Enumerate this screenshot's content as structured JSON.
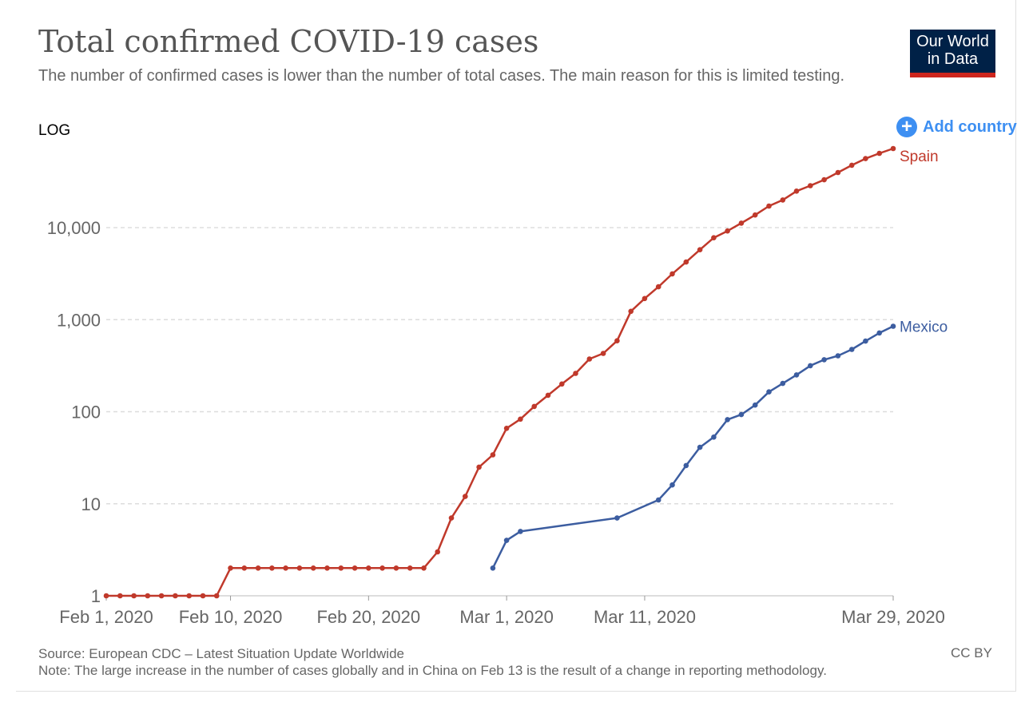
{
  "header": {
    "title": "Total confirmed COVID-19 cases",
    "subtitle": "The number of confirmed cases is lower than the number of total cases. The main reason for this is limited testing.",
    "logo_line1": "Our World",
    "logo_line2": "in Data"
  },
  "controls": {
    "scale_toggle": "LOG",
    "add_country": "Add country"
  },
  "footer": {
    "source": "Source: European CDC – Latest Situation Update Worldwide",
    "note": "Note: The large increase in the number of cases globally and in China on Feb 13 is the result of a change in reporting methodology.",
    "license": "CC BY"
  },
  "colors": {
    "spain": "#c0392b",
    "mexico": "#3c5da0",
    "grid": "#dddddd",
    "logo_bg": "#002147",
    "logo_accent": "#ce261e",
    "add_country": "#3d8ff2"
  },
  "icons": {
    "add": "plus-circle-icon"
  },
  "chart_data": {
    "type": "line",
    "title": "Total confirmed COVID-19 cases",
    "yscale": "log",
    "ylim": [
      1,
      80000
    ],
    "xlim": [
      "2020-02-01",
      "2020-03-29"
    ],
    "grid": "horizontal dashed",
    "y_ticks": [
      {
        "value": 1,
        "label": "1"
      },
      {
        "value": 10,
        "label": "10"
      },
      {
        "value": 100,
        "label": "100"
      },
      {
        "value": 1000,
        "label": "1,000"
      },
      {
        "value": 10000,
        "label": "10,000"
      }
    ],
    "x_ticks": [
      {
        "date": "2020-02-01",
        "label": "Feb 1, 2020"
      },
      {
        "date": "2020-02-10",
        "label": "Feb 10, 2020"
      },
      {
        "date": "2020-02-20",
        "label": "Feb 20, 2020"
      },
      {
        "date": "2020-03-01",
        "label": "Mar 1, 2020"
      },
      {
        "date": "2020-03-11",
        "label": "Mar 11, 2020"
      },
      {
        "date": "2020-03-29",
        "label": "Mar 29, 2020"
      }
    ],
    "series": [
      {
        "name": "Spain",
        "color": "#c0392b",
        "points": [
          [
            "2020-02-01",
            1
          ],
          [
            "2020-02-02",
            1
          ],
          [
            "2020-02-03",
            1
          ],
          [
            "2020-02-04",
            1
          ],
          [
            "2020-02-05",
            1
          ],
          [
            "2020-02-06",
            1
          ],
          [
            "2020-02-07",
            1
          ],
          [
            "2020-02-08",
            1
          ],
          [
            "2020-02-09",
            1
          ],
          [
            "2020-02-10",
            2
          ],
          [
            "2020-02-11",
            2
          ],
          [
            "2020-02-12",
            2
          ],
          [
            "2020-02-13",
            2
          ],
          [
            "2020-02-14",
            2
          ],
          [
            "2020-02-15",
            2
          ],
          [
            "2020-02-16",
            2
          ],
          [
            "2020-02-17",
            2
          ],
          [
            "2020-02-18",
            2
          ],
          [
            "2020-02-19",
            2
          ],
          [
            "2020-02-20",
            2
          ],
          [
            "2020-02-21",
            2
          ],
          [
            "2020-02-22",
            2
          ],
          [
            "2020-02-23",
            2
          ],
          [
            "2020-02-24",
            2
          ],
          [
            "2020-02-25",
            3
          ],
          [
            "2020-02-26",
            7
          ],
          [
            "2020-02-27",
            12
          ],
          [
            "2020-02-28",
            25
          ],
          [
            "2020-02-29",
            34
          ],
          [
            "2020-03-01",
            66
          ],
          [
            "2020-03-02",
            83
          ],
          [
            "2020-03-03",
            114
          ],
          [
            "2020-03-04",
            151
          ],
          [
            "2020-03-05",
            200
          ],
          [
            "2020-03-06",
            261
          ],
          [
            "2020-03-07",
            374
          ],
          [
            "2020-03-08",
            430
          ],
          [
            "2020-03-09",
            589
          ],
          [
            "2020-03-10",
            1231
          ],
          [
            "2020-03-11",
            1695
          ],
          [
            "2020-03-12",
            2277
          ],
          [
            "2020-03-13",
            3146
          ],
          [
            "2020-03-14",
            4231
          ],
          [
            "2020-03-15",
            5753
          ],
          [
            "2020-03-16",
            7753
          ],
          [
            "2020-03-17",
            9191
          ],
          [
            "2020-03-18",
            11178
          ],
          [
            "2020-03-19",
            13716
          ],
          [
            "2020-03-20",
            17147
          ],
          [
            "2020-03-21",
            19980
          ],
          [
            "2020-03-22",
            24926
          ],
          [
            "2020-03-23",
            28572
          ],
          [
            "2020-03-24",
            33089
          ],
          [
            "2020-03-25",
            39673
          ],
          [
            "2020-03-26",
            47610
          ],
          [
            "2020-03-27",
            56188
          ],
          [
            "2020-03-28",
            64059
          ],
          [
            "2020-03-29",
            72248
          ]
        ]
      },
      {
        "name": "Mexico",
        "color": "#3c5da0",
        "points": [
          [
            "2020-02-29",
            2
          ],
          [
            "2020-03-01",
            4
          ],
          [
            "2020-03-02",
            5
          ],
          [
            "2020-03-09",
            7
          ],
          [
            "2020-03-12",
            11
          ],
          [
            "2020-03-13",
            16
          ],
          [
            "2020-03-14",
            26
          ],
          [
            "2020-03-15",
            41
          ],
          [
            "2020-03-16",
            53
          ],
          [
            "2020-03-17",
            82
          ],
          [
            "2020-03-18",
            93
          ],
          [
            "2020-03-19",
            118
          ],
          [
            "2020-03-20",
            164
          ],
          [
            "2020-03-21",
            203
          ],
          [
            "2020-03-22",
            251
          ],
          [
            "2020-03-23",
            316
          ],
          [
            "2020-03-24",
            367
          ],
          [
            "2020-03-25",
            405
          ],
          [
            "2020-03-26",
            475
          ],
          [
            "2020-03-27",
            585
          ],
          [
            "2020-03-28",
            717
          ],
          [
            "2020-03-29",
            848
          ]
        ]
      }
    ]
  }
}
